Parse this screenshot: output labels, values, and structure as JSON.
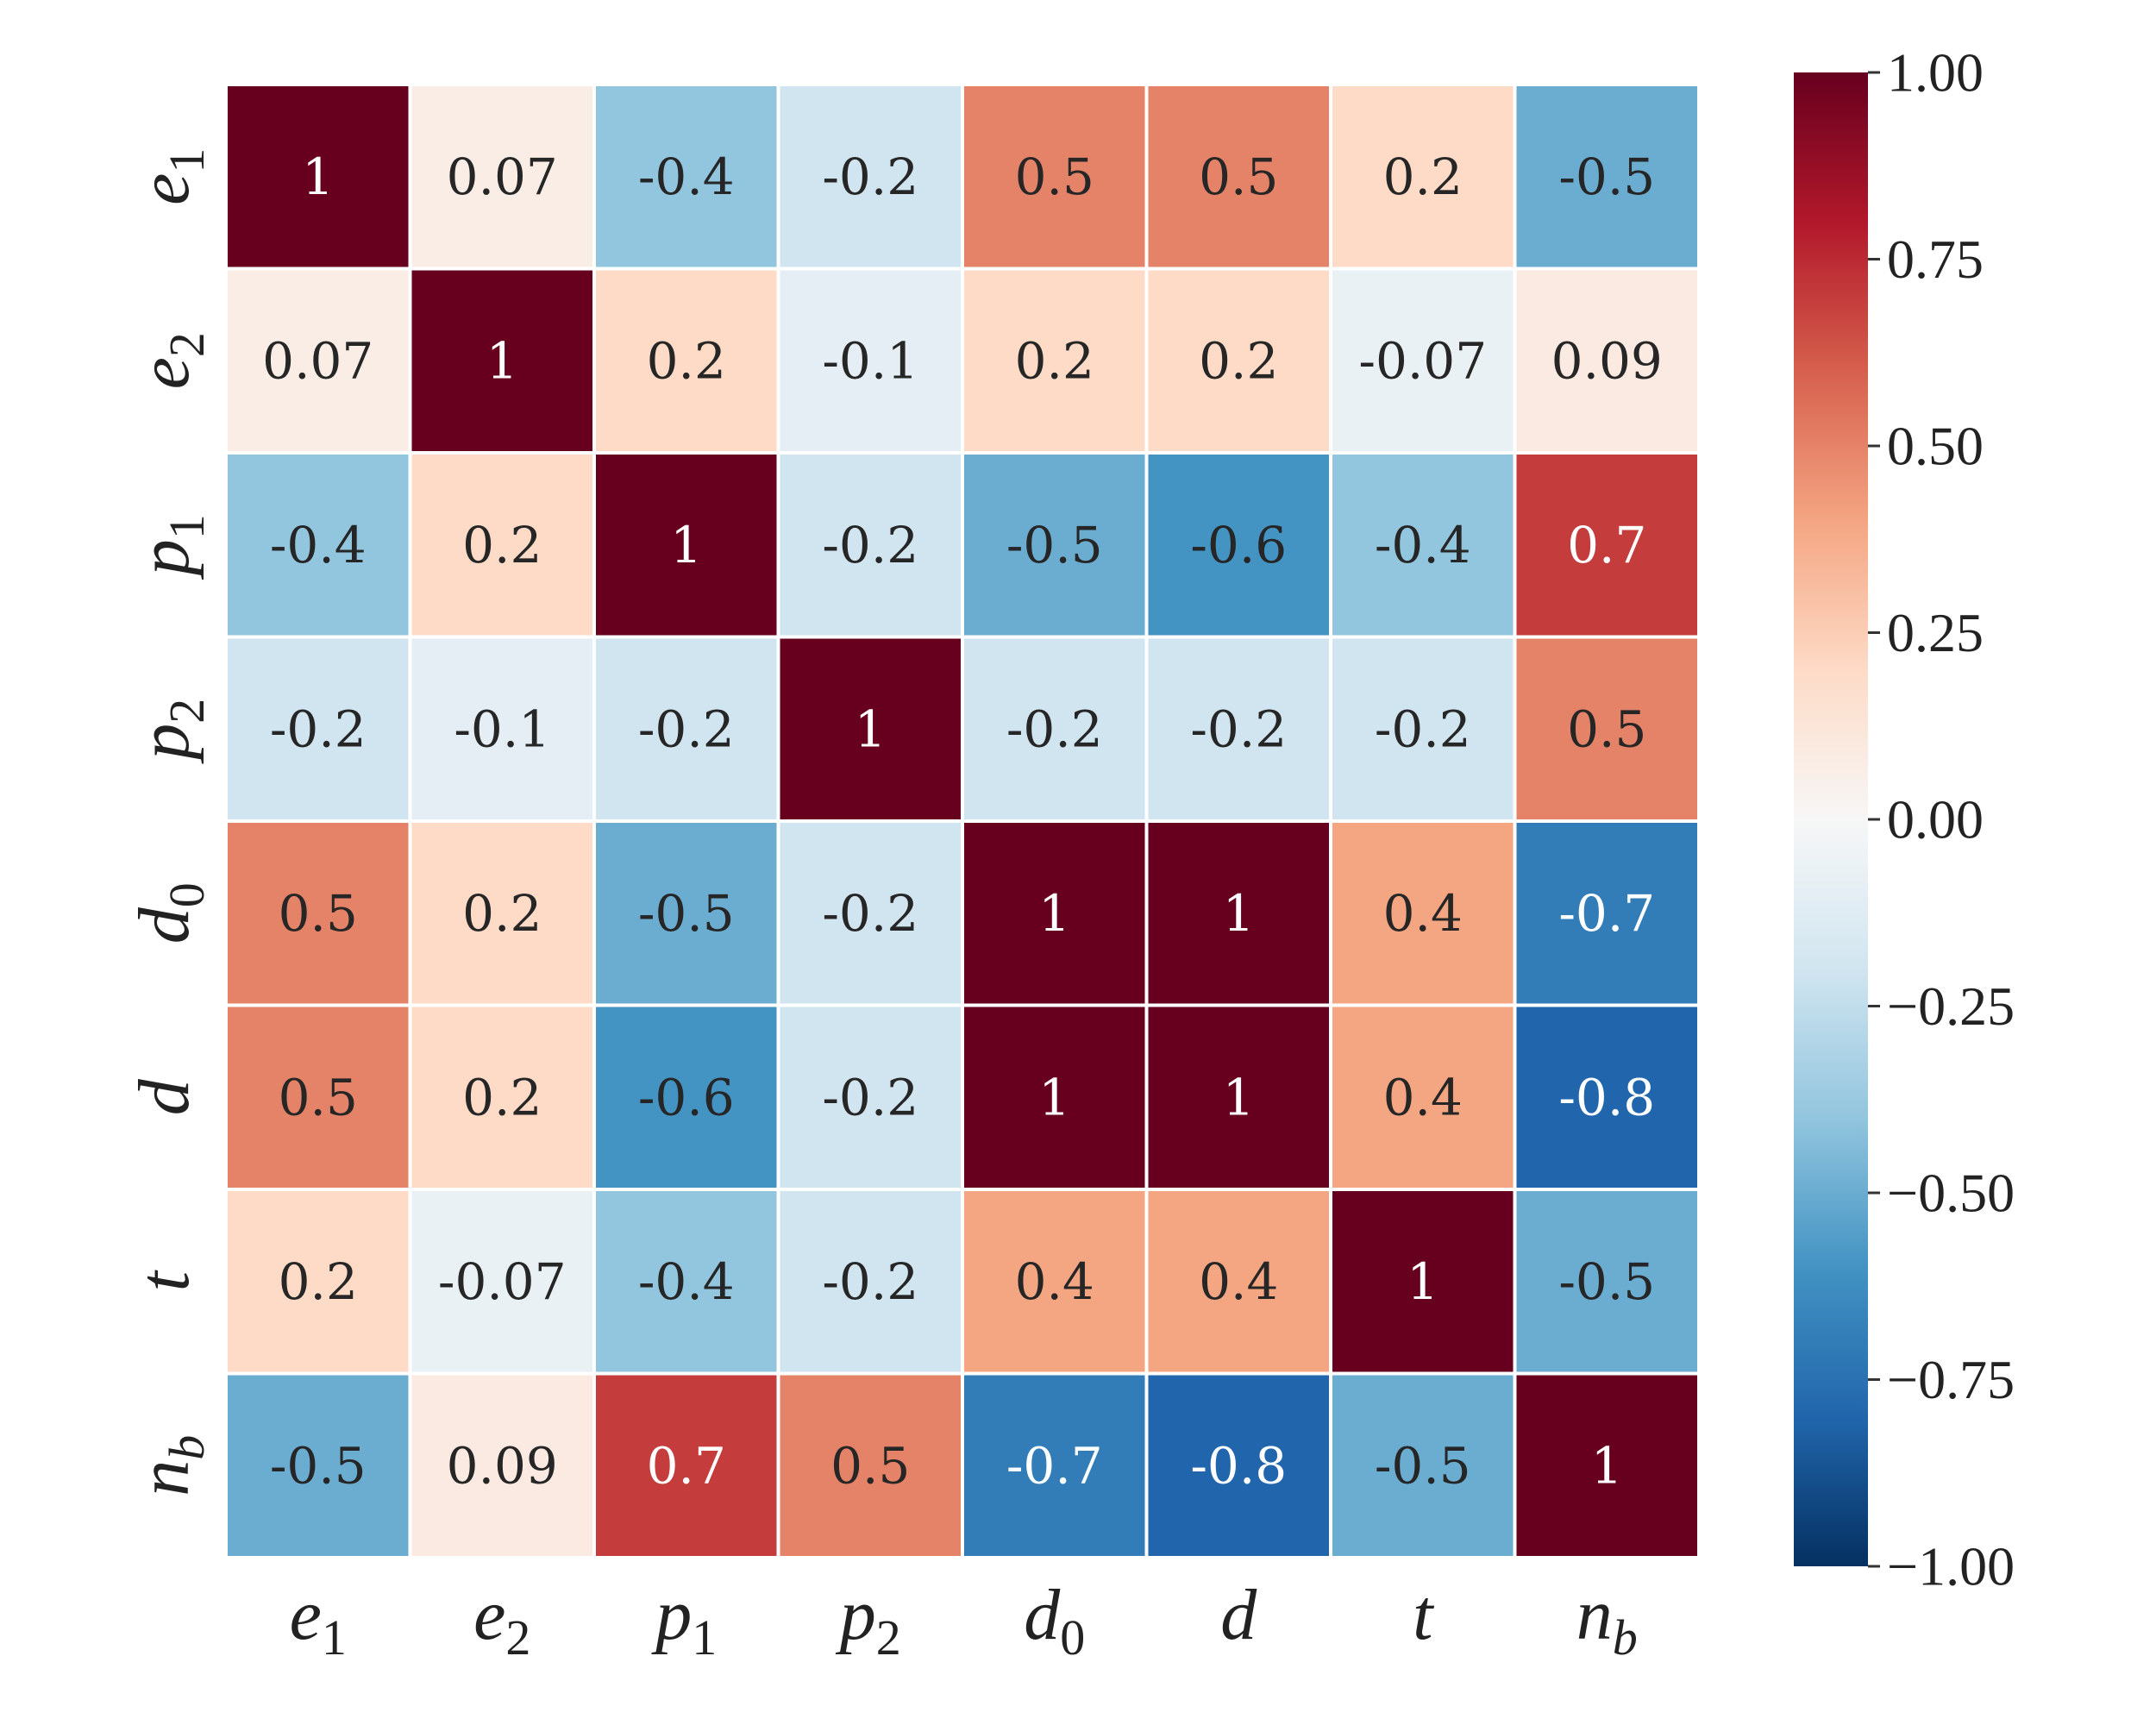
{
  "chart_data": {
    "type": "heatmap",
    "variables": [
      {
        "base": "e",
        "sub": "1",
        "sub_italic": false
      },
      {
        "base": "e",
        "sub": "2",
        "sub_italic": false
      },
      {
        "base": "p",
        "sub": "1",
        "sub_italic": false
      },
      {
        "base": "p",
        "sub": "2",
        "sub_italic": false
      },
      {
        "base": "d",
        "sub": "0",
        "sub_italic": false
      },
      {
        "base": "d",
        "sub": "",
        "sub_italic": false
      },
      {
        "base": "t",
        "sub": "",
        "sub_italic": false
      },
      {
        "base": "n",
        "sub": "b",
        "sub_italic": true
      }
    ],
    "matrix": [
      [
        "1",
        "0.07",
        "-0.4",
        "-0.2",
        "0.5",
        "0.5",
        "0.2",
        "-0.5"
      ],
      [
        "0.07",
        "1",
        "0.2",
        "-0.1",
        "0.2",
        "0.2",
        "-0.07",
        "0.09"
      ],
      [
        "-0.4",
        "0.2",
        "1",
        "-0.2",
        "-0.5",
        "-0.6",
        "-0.4",
        "0.7"
      ],
      [
        "-0.2",
        "-0.1",
        "-0.2",
        "1",
        "-0.2",
        "-0.2",
        "-0.2",
        "0.5"
      ],
      [
        "0.5",
        "0.2",
        "-0.5",
        "-0.2",
        "1",
        "1",
        "0.4",
        "-0.7"
      ],
      [
        "0.5",
        "0.2",
        "-0.6",
        "-0.2",
        "1",
        "1",
        "0.4",
        "-0.8"
      ],
      [
        "0.2",
        "-0.07",
        "-0.4",
        "-0.2",
        "0.4",
        "0.4",
        "1",
        "-0.5"
      ],
      [
        "-0.5",
        "0.09",
        "0.7",
        "0.5",
        "-0.7",
        "-0.8",
        "-0.5",
        "1"
      ]
    ],
    "colorbar": {
      "range": [
        -1.0,
        1.0
      ],
      "ticks": [
        "1.00",
        "0.75",
        "0.50",
        "0.25",
        "0.00",
        "−0.25",
        "−0.50",
        "−0.75",
        "−1.00"
      ],
      "tick_values": [
        1.0,
        0.75,
        0.5,
        0.25,
        0.0,
        -0.25,
        -0.5,
        -0.75,
        -1.0
      ],
      "colormap": "RdBu_r",
      "colormap_stops": [
        "#053061",
        "#2166ac",
        "#4393c3",
        "#92c5de",
        "#d1e5f0",
        "#f7f7f7",
        "#fddbc7",
        "#f4a582",
        "#d6604d",
        "#b2182b",
        "#67001f"
      ]
    },
    "title": "",
    "xlabel": "",
    "ylabel": "",
    "grid": false
  }
}
